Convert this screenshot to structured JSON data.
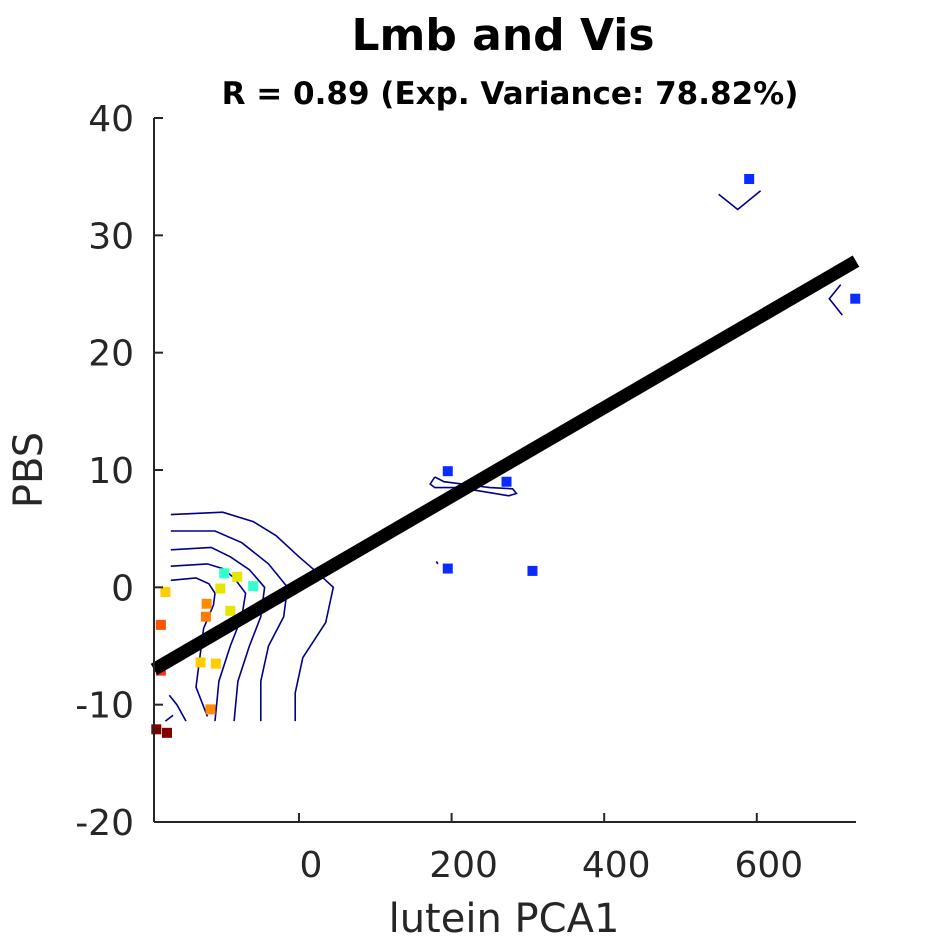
{
  "chart_data": {
    "type": "scatter",
    "title": "Lmb and Vis",
    "subtitle": "R = 0.89 (Exp. Variance: 78.82%)",
    "xlabel": "lutein PCA1",
    "ylabel": "PBS",
    "xlim": [
      -190,
      730
    ],
    "ylim": [
      -20,
      40
    ],
    "xticks": [
      {
        "value": 0,
        "label": "0"
      },
      {
        "value": 200,
        "label": "200"
      },
      {
        "value": 400,
        "label": "400"
      },
      {
        "value": 600,
        "label": "600"
      }
    ],
    "yticks": [
      {
        "value": -20,
        "label": "-20"
      },
      {
        "value": -10,
        "label": "-10"
      },
      {
        "value": 0,
        "label": "0"
      },
      {
        "value": 10,
        "label": "10"
      },
      {
        "value": 20,
        "label": "20"
      },
      {
        "value": 30,
        "label": "30"
      },
      {
        "value": 40,
        "label": "40"
      }
    ],
    "grid": false,
    "points": [
      {
        "x": 590,
        "y": 34.8,
        "color": "#0a2cff"
      },
      {
        "x": 729,
        "y": 24.6,
        "color": "#0a2cff"
      },
      {
        "x": 195,
        "y": 9.9,
        "color": "#0a2cff"
      },
      {
        "x": 272,
        "y": 9.0,
        "color": "#0a2cff"
      },
      {
        "x": 195,
        "y": 1.6,
        "color": "#0a2cff"
      },
      {
        "x": 306,
        "y": 1.4,
        "color": "#0a2cff"
      },
      {
        "x": -98,
        "y": 1.2,
        "color": "#33ffcc"
      },
      {
        "x": -60,
        "y": 0.1,
        "color": "#33ffcc"
      },
      {
        "x": -81,
        "y": 0.9,
        "color": "#e6e600"
      },
      {
        "x": -103,
        "y": -0.1,
        "color": "#e6e600"
      },
      {
        "x": -90,
        "y": -2.0,
        "color": "#e6e600"
      },
      {
        "x": -175,
        "y": -0.4,
        "color": "#ffcc00"
      },
      {
        "x": -121,
        "y": -1.4,
        "color": "#ff8c00"
      },
      {
        "x": -122,
        "y": -2.5,
        "color": "#ff7a00"
      },
      {
        "x": -181,
        "y": -3.2,
        "color": "#ff5500"
      },
      {
        "x": -129,
        "y": -6.4,
        "color": "#ffcc00"
      },
      {
        "x": -109,
        "y": -6.5,
        "color": "#ffcc00"
      },
      {
        "x": -181,
        "y": -7.1,
        "color": "#ff3300"
      },
      {
        "x": -116,
        "y": -10.4,
        "color": "#ff8c00"
      },
      {
        "x": -187,
        "y": -12.1,
        "color": "#800000"
      },
      {
        "x": -173,
        "y": -12.4,
        "color": "#800000"
      }
    ],
    "fit_line": {
      "x": [
        -190,
        730
      ],
      "y": [
        -7.0,
        27.8
      ],
      "color": "#000000"
    },
    "contours": [
      {
        "color": "#00008b",
        "points": [
          [
            -168,
            6.2
          ],
          [
            -100,
            6.4
          ],
          [
            -60,
            5.6
          ],
          [
            -30,
            4.4
          ],
          [
            0,
            2.6
          ],
          [
            25,
            1.2
          ],
          [
            45,
            0.0
          ],
          [
            35,
            -3.0
          ],
          [
            5,
            -6.0
          ],
          [
            -5,
            -9.0
          ],
          [
            -5,
            -11.4
          ]
        ]
      },
      {
        "color": "#00008b",
        "points": [
          [
            -168,
            4.8
          ],
          [
            -110,
            4.8
          ],
          [
            -75,
            3.8
          ],
          [
            -40,
            2.0
          ],
          [
            -15,
            0.0
          ],
          [
            -20,
            -2.5
          ],
          [
            -40,
            -5.0
          ],
          [
            -50,
            -8.0
          ],
          [
            -50,
            -11.4
          ]
        ]
      },
      {
        "color": "#00008b",
        "points": [
          [
            -168,
            3.2
          ],
          [
            -115,
            3.4
          ],
          [
            -90,
            2.6
          ],
          [
            -65,
            1.5
          ],
          [
            -45,
            0.0
          ],
          [
            -50,
            -2.5
          ],
          [
            -65,
            -5.0
          ],
          [
            -80,
            -8.0
          ],
          [
            -85,
            -11.4
          ]
        ]
      },
      {
        "color": "#00008b",
        "points": [
          [
            -168,
            1.8
          ],
          [
            -120,
            2.0
          ],
          [
            -100,
            1.6
          ],
          [
            -85,
            0.8
          ],
          [
            -70,
            -0.5
          ],
          [
            -75,
            -2.5
          ],
          [
            -90,
            -5.0
          ],
          [
            -105,
            -8.0
          ],
          [
            -110,
            -11.4
          ]
        ]
      },
      {
        "color": "#00008b",
        "points": [
          [
            -168,
            0.6
          ],
          [
            -135,
            0.8
          ],
          [
            -118,
            0.3
          ],
          [
            -110,
            -0.5
          ],
          [
            -112,
            -1.5
          ],
          [
            -125,
            -3.5
          ],
          [
            -130,
            -6.0
          ],
          [
            -135,
            -8.5
          ],
          [
            -120,
            -11.0
          ]
        ]
      },
      {
        "color": "#00008b",
        "points": [
          [
            -170,
            -9.2
          ],
          [
            -160,
            -10.0
          ],
          [
            -148,
            -11.4
          ]
        ]
      },
      {
        "color": "#00008b",
        "points": [
          [
            -175,
            -11.4
          ],
          [
            -165,
            -10.9
          ]
        ]
      },
      {
        "color": "#00008b",
        "points": [
          [
            178,
            9.4
          ],
          [
            190,
            9.0
          ],
          [
            250,
            8.5
          ],
          [
            280,
            8.4
          ],
          [
            285,
            8.0
          ],
          [
            275,
            7.8
          ],
          [
            210,
            8.5
          ],
          [
            178,
            8.5
          ],
          [
            172,
            8.8
          ],
          [
            178,
            9.4
          ]
        ]
      },
      {
        "color": "#00008b",
        "points": [
          [
            550,
            33.5
          ],
          [
            575,
            32.2
          ],
          [
            605,
            33.8
          ]
        ]
      },
      {
        "color": "#00008b",
        "points": [
          [
            710,
            25.8
          ],
          [
            695,
            24.6
          ],
          [
            712,
            23.2
          ]
        ]
      },
      {
        "color": "#00008b",
        "points": [
          [
            180,
            2.2
          ],
          [
            182,
            2.0
          ]
        ]
      }
    ]
  }
}
